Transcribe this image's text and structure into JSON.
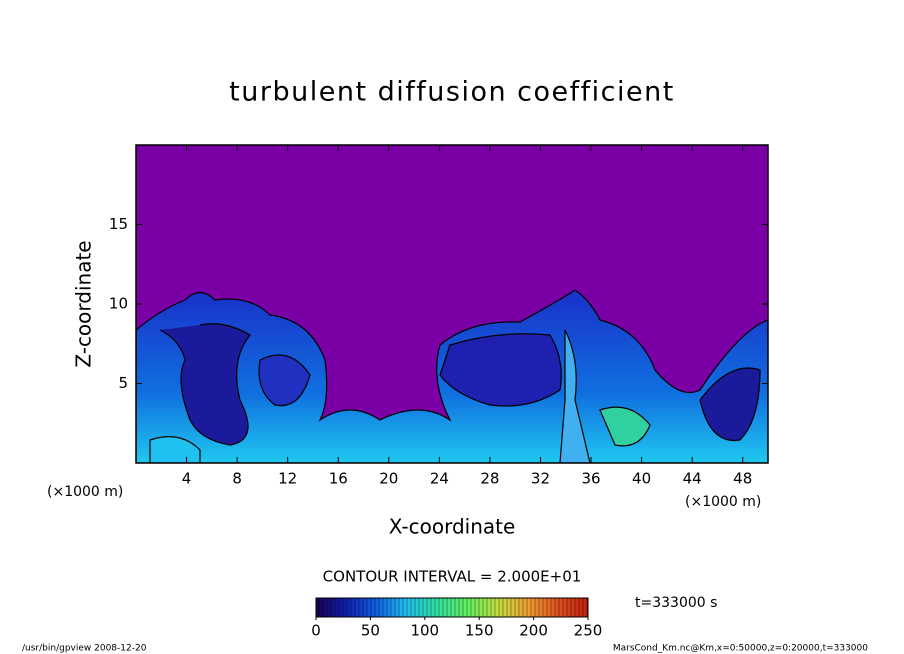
{
  "chart_data": {
    "type": "contour",
    "title": "turbulent diffusion coefficient",
    "x_label": "X-coordinate",
    "y_label": "Z-coordinate",
    "x_unit": "(×1000 m)",
    "y_unit": "(×1000 m)",
    "xlim": [
      0,
      50
    ],
    "xticks": [
      4,
      8,
      12,
      16,
      20,
      24,
      28,
      32,
      36,
      40,
      44,
      48
    ],
    "ylim": [
      0,
      20
    ],
    "yticks": [
      5,
      10,
      15
    ],
    "background_color": "#7a00a6",
    "contour_interval_label": "CONTOUR INTERVAL = 2.000E+01",
    "time_label": "t=333000 s",
    "colorbar": {
      "lim": [
        0,
        250
      ],
      "ticks": [
        0,
        50,
        100,
        150,
        200,
        250
      ],
      "colors": [
        "#1a0050",
        "#1020b0",
        "#1060e0",
        "#20c0f0",
        "#30e0a0",
        "#60f060",
        "#c0e040",
        "#f0a030",
        "#e05020",
        "#c02010"
      ]
    }
  },
  "footer": {
    "left": "/usr/bin/gpview   2008-12-20",
    "right": "MarsCond_Km.nc@Km,x=0:50000,z=0:20000,t=333000"
  }
}
